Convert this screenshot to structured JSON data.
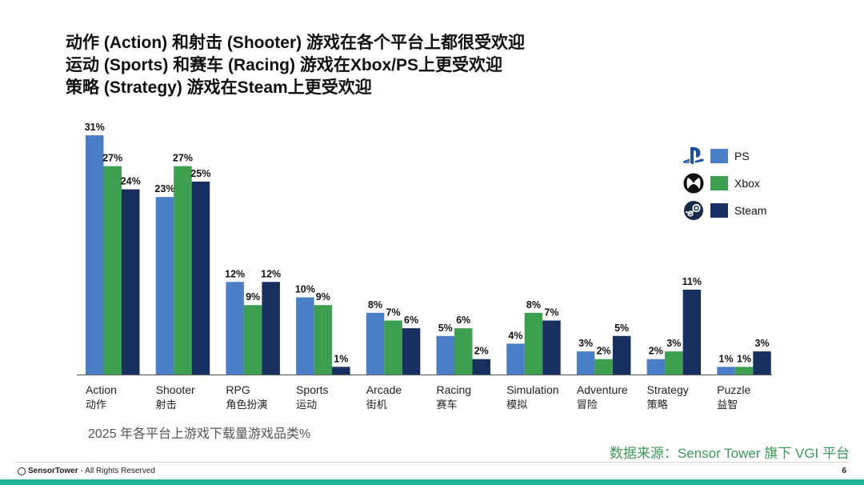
{
  "headline": [
    "动作 (Action) 和射击 (Shooter) 游戏在各个平台上都很受欢迎",
    "运动 (Sports) 和赛车 (Racing) 游戏在Xbox/PS上更受欢迎",
    "策略 (Strategy) 游戏在Steam上更受欢迎"
  ],
  "caption": "2025 年各平台上游戏下载量游戏品类%",
  "source": "数据来源：Sensor Tower 旗下 VGI 平台",
  "footer": {
    "brand": "SensorTower",
    "rights": "- All Rights Reserved",
    "page": "6"
  },
  "colors": {
    "PS": "#4a7ec6",
    "Xbox": "#3da04e",
    "Steam": "#17305f",
    "accent": "#22b59a"
  },
  "legend": [
    {
      "name": "PS",
      "icon": "playstation-icon"
    },
    {
      "name": "Xbox",
      "icon": "xbox-icon"
    },
    {
      "name": "Steam",
      "icon": "steam-icon"
    }
  ],
  "chart_data": {
    "type": "bar",
    "categories": [
      "Action",
      "Shooter",
      "RPG",
      "Sports",
      "Arcade",
      "Racing",
      "Simulation",
      "Adventure",
      "Strategy",
      "Puzzle"
    ],
    "categories_cn": [
      "动作",
      "射击",
      "角色扮演",
      "运动",
      "街机",
      "赛车",
      "模拟",
      "冒险",
      "策略",
      "益智"
    ],
    "series": [
      {
        "name": "PS",
        "values": [
          31,
          23,
          12,
          10,
          8,
          5,
          4,
          3,
          2,
          1
        ]
      },
      {
        "name": "Xbox",
        "values": [
          27,
          27,
          9,
          9,
          7,
          6,
          8,
          2,
          3,
          1
        ]
      },
      {
        "name": "Steam",
        "values": [
          24,
          25,
          12,
          1,
          6,
          2,
          7,
          5,
          11,
          3
        ]
      }
    ],
    "value_suffix": "%",
    "ylim": [
      0,
      31
    ],
    "grid": false,
    "legend_position": "right"
  }
}
